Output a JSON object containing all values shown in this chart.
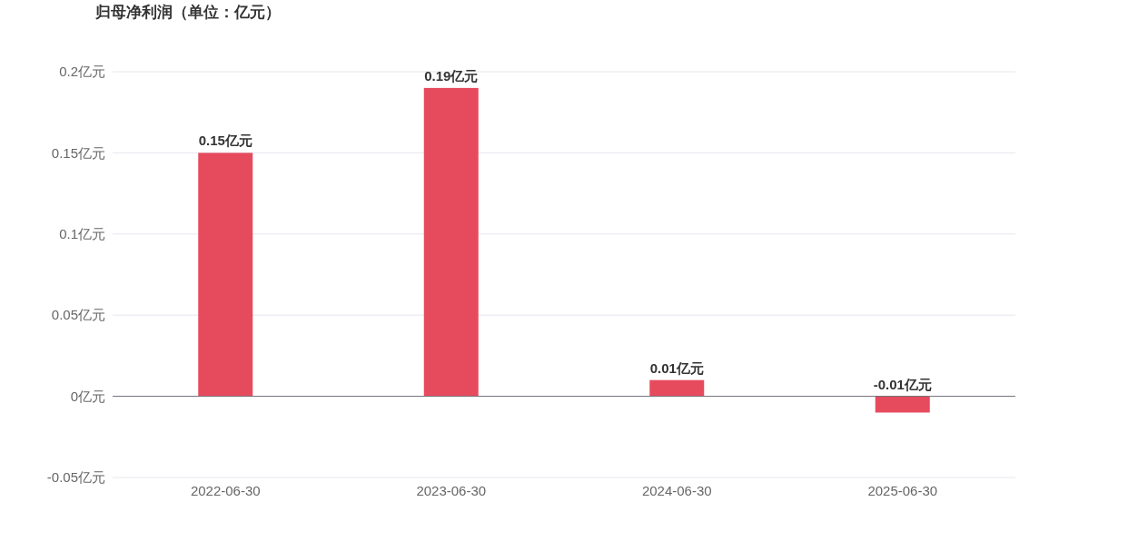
{
  "chart_data": {
    "type": "bar",
    "title": "归母净利润（单位：亿元）",
    "categories": [
      "2022-06-30",
      "2023-06-30",
      "2024-06-30",
      "2025-06-30"
    ],
    "values": [
      0.15,
      0.19,
      0.01,
      -0.01
    ],
    "color": "#e64b5d",
    "value_labels": [
      "0.15亿元",
      "0.19亿元",
      "0.01亿元",
      "-0.01亿元"
    ],
    "ylim": [
      -0.05,
      0.2
    ],
    "yticks": [
      {
        "value": -0.05,
        "label": "-0.05亿元"
      },
      {
        "value": 0,
        "label": "0亿元"
      },
      {
        "value": 0.05,
        "label": "0.05亿元"
      },
      {
        "value": 0.1,
        "label": "0.1亿元"
      },
      {
        "value": 0.15,
        "label": "0.15亿元"
      },
      {
        "value": 0.2,
        "label": "0.2亿元"
      }
    ],
    "grid": "y"
  }
}
